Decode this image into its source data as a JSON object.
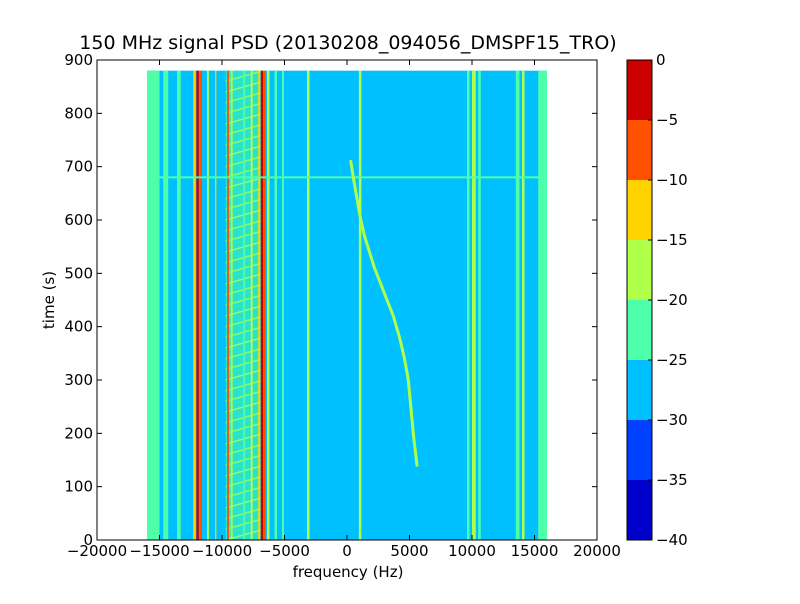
{
  "chart_data": {
    "type": "heatmap",
    "title": "150 MHz signal PSD (20130208_094056_DMSPF15_TRO)",
    "xlabel": "frequency (Hz)",
    "ylabel": "time (s)",
    "xlim": [
      -20000,
      20000
    ],
    "ylim": [
      0,
      900
    ],
    "x_ticks": [
      -20000,
      -15000,
      -10000,
      -5000,
      0,
      5000,
      10000,
      15000,
      20000
    ],
    "x_tick_labels": [
      "−20000",
      "−15000",
      "−10000",
      "−5000",
      "0",
      "5000",
      "10000",
      "15000",
      "20000"
    ],
    "y_ticks": [
      0,
      100,
      200,
      300,
      400,
      500,
      600,
      700,
      800,
      900
    ],
    "y_tick_labels": [
      "0",
      "100",
      "200",
      "300",
      "400",
      "500",
      "600",
      "700",
      "800",
      "900"
    ],
    "data_extent": {
      "x": [
        -16000,
        16000
      ],
      "y": [
        0,
        880
      ]
    },
    "background_level": -27.5,
    "colorbar": {
      "levels": [
        -40,
        -35,
        -30,
        -25,
        -20,
        -15,
        -10,
        -5,
        0
      ],
      "tick_labels": [
        "−40",
        "−35",
        "−30",
        "−25",
        "−20",
        "−15",
        "−10",
        "−5",
        "0"
      ],
      "colors": [
        "#0000cd",
        "#0040ff",
        "#00c0ff",
        "#4dffa8",
        "#b0ff48",
        "#ffd200",
        "#ff5000",
        "#cd0000"
      ]
    },
    "vertical_lines": [
      {
        "x": -16000,
        "x2": -15000,
        "level": -22.5
      },
      {
        "x": -14700,
        "x2": -14300,
        "level": -22.5
      },
      {
        "x": -13600,
        "x2": -13300,
        "level": -22.5
      },
      {
        "x": -12300,
        "x2": -12100,
        "level": -12.5
      },
      {
        "x": -12050,
        "x2": -11850,
        "level": -2.5
      },
      {
        "x": -11800,
        "x2": -11600,
        "level": -7.5
      },
      {
        "x": -11200,
        "x2": -11050,
        "level": -17.5
      },
      {
        "x": -10550,
        "x2": -10450,
        "level": -12.5
      },
      {
        "x": -9600,
        "x2": -9450,
        "level": -7.5
      },
      {
        "x": -9300,
        "x2": -9150,
        "level": -17.5
      },
      {
        "x": -8300,
        "x2": -8150,
        "level": -22.5
      },
      {
        "x": -7700,
        "x2": -7550,
        "level": -17.5
      },
      {
        "x": -7100,
        "x2": -6950,
        "level": -12.5
      },
      {
        "x": -6900,
        "x2": -6700,
        "level": -2.5
      },
      {
        "x": -6650,
        "x2": -6500,
        "level": -7.5
      },
      {
        "x": -6400,
        "x2": -6200,
        "level": -17.5
      },
      {
        "x": -5800,
        "x2": -5600,
        "level": -22.5
      },
      {
        "x": -5200,
        "x2": -5050,
        "level": -22.5
      },
      {
        "x": -3200,
        "x2": -3000,
        "level": -17.5
      },
      {
        "x": 950,
        "x2": 1150,
        "level": -17.5
      },
      {
        "x": 9600,
        "x2": 9800,
        "level": -22.5
      },
      {
        "x": 10000,
        "x2": 10300,
        "level": -17.5
      },
      {
        "x": 10500,
        "x2": 10700,
        "level": -22.5
      },
      {
        "x": 13500,
        "x2": 13800,
        "level": -22.5
      },
      {
        "x": 14000,
        "x2": 14200,
        "level": -17.5
      },
      {
        "x": 15300,
        "x2": 16000,
        "level": -22.5
      }
    ],
    "hatched_region": {
      "x1": -9700,
      "x2": -6700,
      "y1": 0,
      "y2": 880,
      "level": -17.5
    },
    "horizontal_lines": [
      {
        "y": 680,
        "x1": -16000,
        "x2": 16000,
        "level": -22.5
      }
    ],
    "signal_trace": {
      "level": -17.5,
      "points": [
        {
          "x": 5600,
          "y": 140
        },
        {
          "x": 5450,
          "y": 170
        },
        {
          "x": 5300,
          "y": 200
        },
        {
          "x": 5100,
          "y": 250
        },
        {
          "x": 4900,
          "y": 300
        },
        {
          "x": 4600,
          "y": 340
        },
        {
          "x": 4200,
          "y": 380
        },
        {
          "x": 3700,
          "y": 420
        },
        {
          "x": 3200,
          "y": 450
        },
        {
          "x": 2700,
          "y": 480
        },
        {
          "x": 2200,
          "y": 510
        },
        {
          "x": 1800,
          "y": 540
        },
        {
          "x": 1400,
          "y": 570
        },
        {
          "x": 1100,
          "y": 600
        },
        {
          "x": 800,
          "y": 640
        },
        {
          "x": 500,
          "y": 680
        },
        {
          "x": 300,
          "y": 710
        }
      ]
    }
  }
}
